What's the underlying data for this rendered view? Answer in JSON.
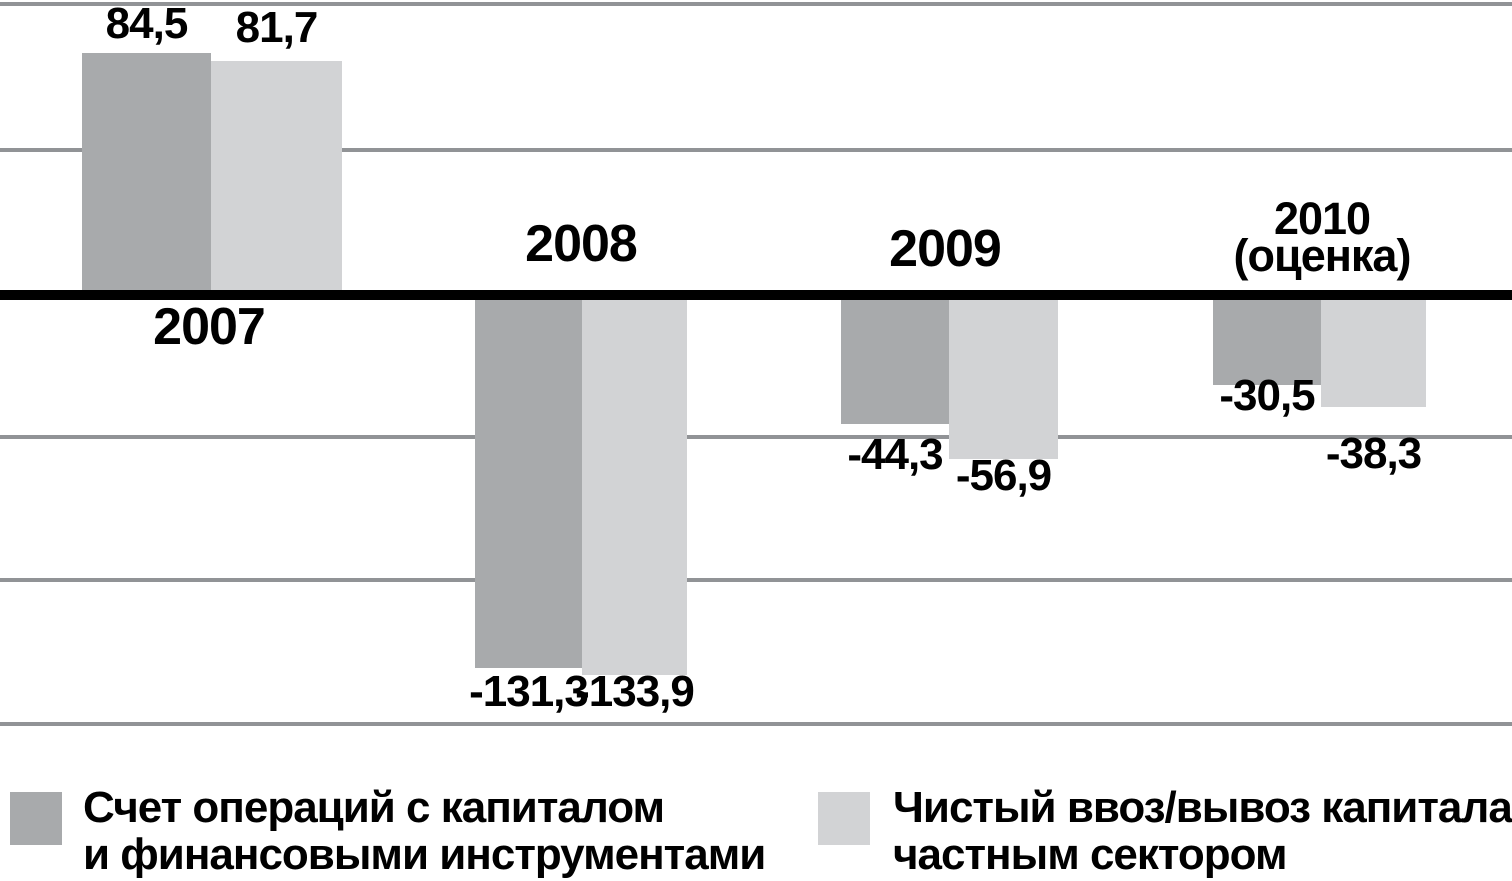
{
  "chart_data": {
    "type": "bar",
    "title": "",
    "xlabel": "",
    "ylabel": "",
    "categories": [
      "2007",
      "2008",
      "2009",
      "2010 (оценка)"
    ],
    "category_labels": [
      "2007",
      "2008",
      "2009",
      "2010\n(оценка)"
    ],
    "series": [
      {
        "name": "Счет операций с капиталом и финансовыми инструментами",
        "color": "#a8aaac",
        "values": [
          84.5,
          -131.3,
          -44.3,
          -30.5
        ]
      },
      {
        "name": "Чистый ввоз/вывоз капитала частным сектором",
        "color": "#d2d3d5",
        "values": [
          81.7,
          -133.9,
          -56.9,
          -38.3
        ]
      }
    ],
    "display_values": [
      [
        "84,5",
        "-131,3",
        "-44,3",
        "-30,5"
      ],
      [
        "81,7",
        "-133,9",
        "-56,9",
        "-38,3"
      ]
    ],
    "ylim": [
      -150,
      100
    ],
    "gridline_values": [
      100,
      50,
      0,
      -50,
      -100,
      -150
    ],
    "grid": true,
    "legend_position": "bottom"
  },
  "legend": {
    "items": [
      {
        "label": "Счет операций с капиталом\nи финансовыми инструментами",
        "color": "#a8aaac"
      },
      {
        "label": "Чистый ввоз/вывоз капитала\nчастным сектором",
        "color": "#d2d3d5"
      }
    ]
  },
  "colors": {
    "series1": "#a8aaac",
    "series2": "#d2d3d5",
    "gridline": "#919396",
    "zero_line": "#000000",
    "background": "#ffffff",
    "text": "#000000"
  }
}
